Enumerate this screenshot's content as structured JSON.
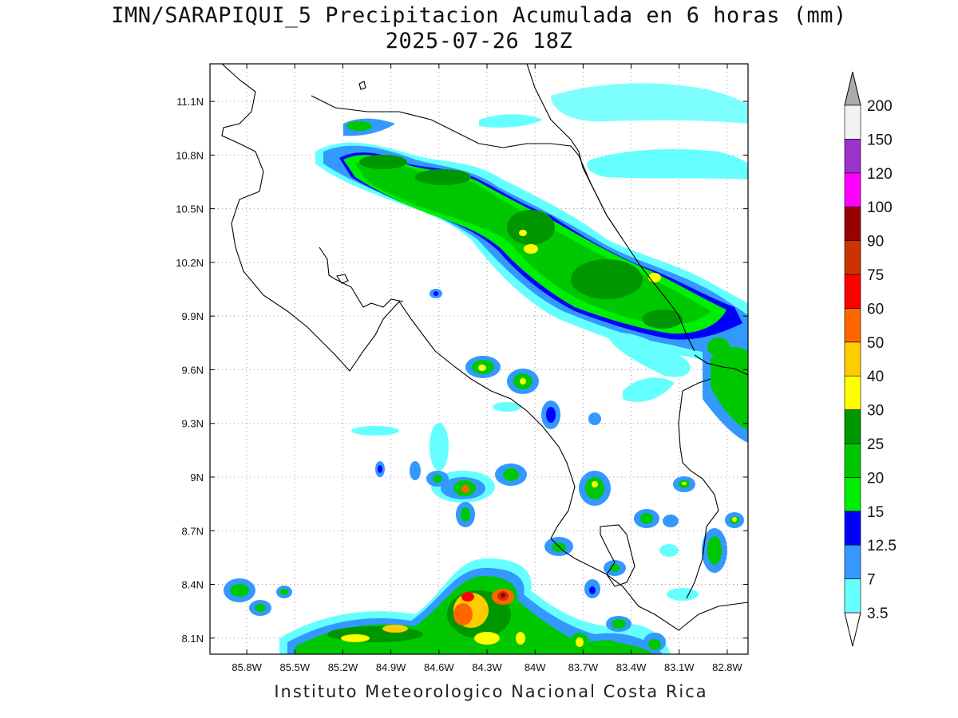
{
  "title_line1": "IMN/SARAPIQUI_5 Precipitacion Acumulada en 6 horas (mm)",
  "title_line2": "2025-07-26 18Z",
  "credit": "Instituto Meteorologico Nacional Costa Rica",
  "map": {
    "lon_range": [
      -86.03,
      -82.67
    ],
    "lat_range": [
      8.01,
      11.31
    ],
    "lat_ticks": [
      "11.1N",
      "10.8N",
      "10.5N",
      "10.2N",
      "9.9N",
      "9.6N",
      "9.3N",
      "9N",
      "8.7N",
      "8.4N",
      "8.1N"
    ],
    "lon_ticks": [
      "85.8W",
      "85.5W",
      "85.2W",
      "84.9W",
      "84.6W",
      "84.3W",
      "84W",
      "83.7W",
      "83.4W",
      "83.1W",
      "82.8W"
    ]
  },
  "colorbar": {
    "labels": [
      "3.5",
      "7",
      "12.5",
      "15",
      "20",
      "25",
      "30",
      "40",
      "50",
      "60",
      "75",
      "90",
      "100",
      "120",
      "150",
      "200"
    ],
    "colors": [
      "#66ffff",
      "#3399ff",
      "#0000ff",
      "#00ee00",
      "#00c800",
      "#009600",
      "#ffff00",
      "#ffcc00",
      "#ff6600",
      "#ff0000",
      "#cc3300",
      "#990000",
      "#ff00ff",
      "#9933cc",
      "#f2f2f2",
      "#aaaaaa"
    ]
  },
  "precip_colors": {
    "c1": "#66ffff",
    "c2": "#3399ff",
    "c3": "#0000ff",
    "c4": "#00ee00",
    "c5": "#00c800",
    "c6": "#009600",
    "c7": "#ffff00",
    "c8": "#ffcc00",
    "c9": "#ff6600",
    "c10": "#ff0000",
    "c11": "#cc3300",
    "c12": "#990000"
  }
}
